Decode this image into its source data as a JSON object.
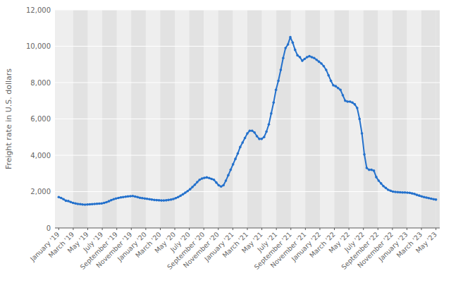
{
  "chart_data": {
    "type": "line",
    "ylabel": "Freight rate in U.S. dollars",
    "color": "#2471cc",
    "marker": "circle",
    "grid": true,
    "xlim": [
      -1.58,
      159.58
    ],
    "ylim": [
      0,
      12000
    ],
    "yticks": [
      0,
      {
        "value": 2000,
        "label": "2,000"
      },
      {
        "value": 4000,
        "label": "4,000"
      },
      {
        "value": 6000,
        "label": "6,000"
      },
      {
        "value": 8000,
        "label": "8,000"
      },
      {
        "value": 10000,
        "label": "10,000"
      },
      {
        "value": 12000,
        "label": "12,000"
      }
    ],
    "xticks": [
      {
        "value": 0,
        "label": "January '19"
      },
      {
        "value": 6.076923076923077,
        "label": "March '19"
      },
      {
        "value": 12.153846153846153,
        "label": "May '19"
      },
      {
        "value": 18.23076923076923,
        "label": "July '19"
      },
      {
        "value": 24.307692307692307,
        "label": "September '19"
      },
      {
        "value": 30.384615384615383,
        "label": "November '19"
      },
      {
        "value": 36.46153846153846,
        "label": "January '20"
      },
      {
        "value": 42.53846153846154,
        "label": "March '20"
      },
      {
        "value": 48.61538461538461,
        "label": "May '20"
      },
      {
        "value": 54.69230769230769,
        "label": "July '20"
      },
      {
        "value": 60.76923076923077,
        "label": "September '20"
      },
      {
        "value": 66.84615384615384,
        "label": "November '20"
      },
      {
        "value": 72.92307692307692,
        "label": "January '21"
      },
      {
        "value": 79,
        "label": "March '21"
      },
      {
        "value": 85.07692307692308,
        "label": "May '21"
      },
      {
        "value": 91.15384615384616,
        "label": "July '21"
      },
      {
        "value": 97.23076923076923,
        "label": "September '21"
      },
      {
        "value": 103.3076923076923,
        "label": "November '21"
      },
      {
        "value": 109.38461538461539,
        "label": "January '22"
      },
      {
        "value": 115.46153846153847,
        "label": "March '22"
      },
      {
        "value": 121.53846153846153,
        "label": "May '22"
      },
      {
        "value": 127.61538461538461,
        "label": "July '22"
      },
      {
        "value": 133.69230769230768,
        "label": "September '22"
      },
      {
        "value": 139.76923076923077,
        "label": "November '22"
      },
      {
        "value": 145.84615384615384,
        "label": "January '23"
      },
      {
        "value": 151.92307692307693,
        "label": "March '23"
      },
      {
        "value": 158,
        "label": "May '23"
      }
    ],
    "x": [
      0,
      1,
      2,
      3,
      4,
      5,
      6,
      7,
      8,
      9,
      10,
      11,
      12,
      13,
      14,
      15,
      16,
      17,
      18,
      19,
      20,
      21,
      22,
      23,
      24,
      25,
      26,
      27,
      28,
      29,
      30,
      31,
      32,
      33,
      34,
      35,
      36,
      37,
      38,
      39,
      40,
      41,
      42,
      43,
      44,
      45,
      46,
      47,
      48,
      49,
      50,
      51,
      52,
      53,
      54,
      55,
      56,
      57,
      58,
      59,
      60,
      61,
      62,
      63,
      64,
      65,
      66,
      67,
      68,
      69,
      70,
      71,
      72,
      73,
      74,
      75,
      76,
      77,
      78,
      79,
      80,
      81,
      82,
      83,
      84,
      85,
      86,
      87,
      88,
      89,
      90,
      91,
      92,
      93,
      94,
      95,
      96,
      97,
      98,
      99,
      100,
      101,
      102,
      103,
      104,
      105,
      106,
      107,
      108,
      109,
      110,
      111,
      112,
      113,
      114,
      115,
      116,
      117,
      118,
      119,
      120,
      121,
      122,
      123,
      124,
      125,
      126,
      127,
      128,
      129,
      130,
      131,
      132,
      133,
      134,
      135,
      136,
      137,
      138,
      139,
      140,
      141,
      142,
      143,
      144,
      145,
      146,
      147,
      148,
      149,
      150,
      151,
      152,
      153,
      154,
      155,
      156,
      157,
      158
    ],
    "values": [
      1700,
      1650,
      1580,
      1500,
      1480,
      1430,
      1380,
      1350,
      1320,
      1310,
      1290,
      1280,
      1290,
      1300,
      1310,
      1320,
      1330,
      1340,
      1350,
      1380,
      1420,
      1470,
      1530,
      1580,
      1620,
      1650,
      1680,
      1700,
      1720,
      1740,
      1750,
      1760,
      1730,
      1700,
      1660,
      1640,
      1620,
      1600,
      1580,
      1560,
      1540,
      1530,
      1520,
      1510,
      1510,
      1520,
      1540,
      1560,
      1590,
      1640,
      1700,
      1770,
      1850,
      1940,
      2030,
      2130,
      2250,
      2380,
      2520,
      2650,
      2720,
      2760,
      2780,
      2750,
      2700,
      2650,
      2500,
      2350,
      2280,
      2350,
      2600,
      2900,
      3200,
      3500,
      3800,
      4100,
      4450,
      4700,
      4950,
      5200,
      5350,
      5350,
      5250,
      5050,
      4900,
      4900,
      5000,
      5300,
      5700,
      6300,
      6900,
      7600,
      8100,
      8700,
      9350,
      9900,
      10100,
      10500,
      10200,
      9800,
      9500,
      9400,
      9200,
      9300,
      9400,
      9450,
      9400,
      9350,
      9250,
      9150,
      9050,
      8900,
      8700,
      8400,
      8100,
      7850,
      7800,
      7700,
      7600,
      7300,
      7000,
      6950,
      6950,
      6900,
      6800,
      6600,
      6000,
      5200,
      4050,
      3300,
      3200,
      3200,
      3150,
      2800,
      2600,
      2450,
      2300,
      2200,
      2100,
      2050,
      2000,
      1980,
      1970,
      1960,
      1950,
      1950,
      1940,
      1930,
      1900,
      1870,
      1820,
      1780,
      1740,
      1700,
      1670,
      1640,
      1610,
      1580,
      1560
    ]
  }
}
